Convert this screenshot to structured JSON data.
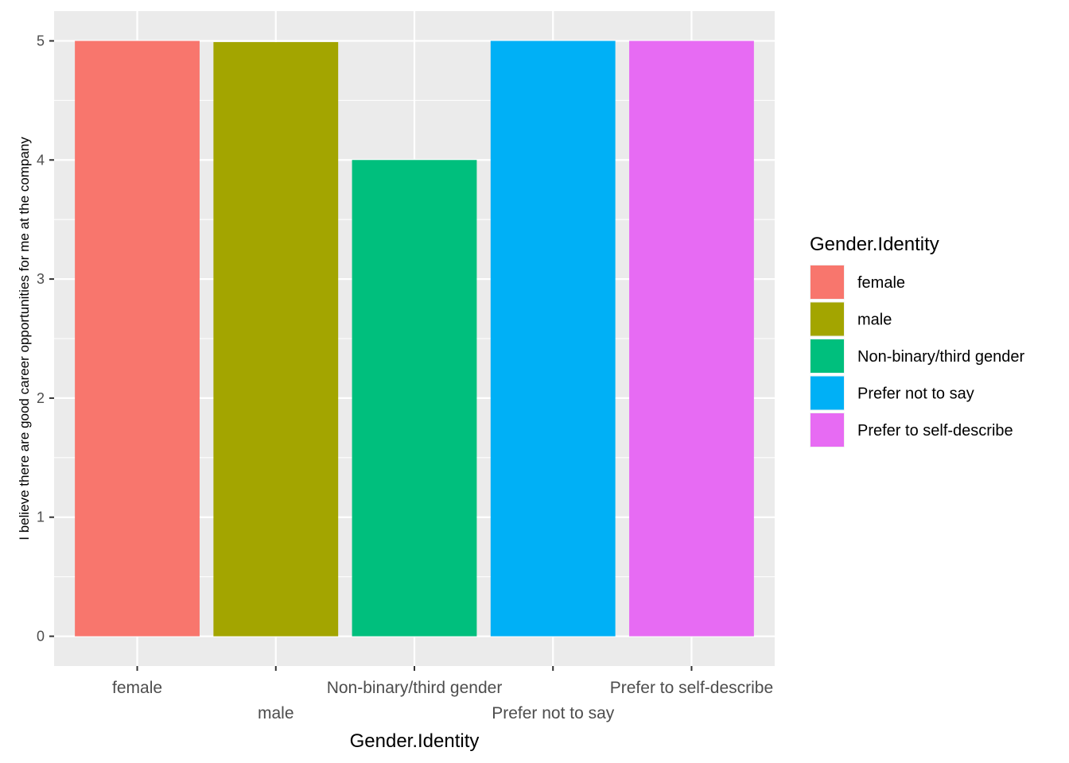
{
  "chart_data": {
    "type": "bar",
    "categories": [
      "female",
      "male",
      "Non-binary/third gender",
      "Prefer not to say",
      "Prefer to self-describe"
    ],
    "values": [
      5,
      4.99,
      4,
      5,
      5
    ],
    "colors": [
      "#F8766D",
      "#A3A500",
      "#00BF7D",
      "#00B0F6",
      "#E76BF3"
    ],
    "xlabel": "Gender.Identity",
    "ylabel": "I believe there are good career opportunities for me at the company",
    "y_ticks": [
      "0",
      "1",
      "2",
      "3",
      "4",
      "5"
    ],
    "ylim": [
      -0.25,
      5.25
    ],
    "grid": true,
    "panel_background": "#EBEBEB",
    "legend": {
      "title": "Gender.Identity",
      "placement": "right",
      "entries": [
        "female",
        "male",
        "Non-binary/third gender",
        "Prefer not to say",
        "Prefer to self-describe"
      ]
    }
  }
}
